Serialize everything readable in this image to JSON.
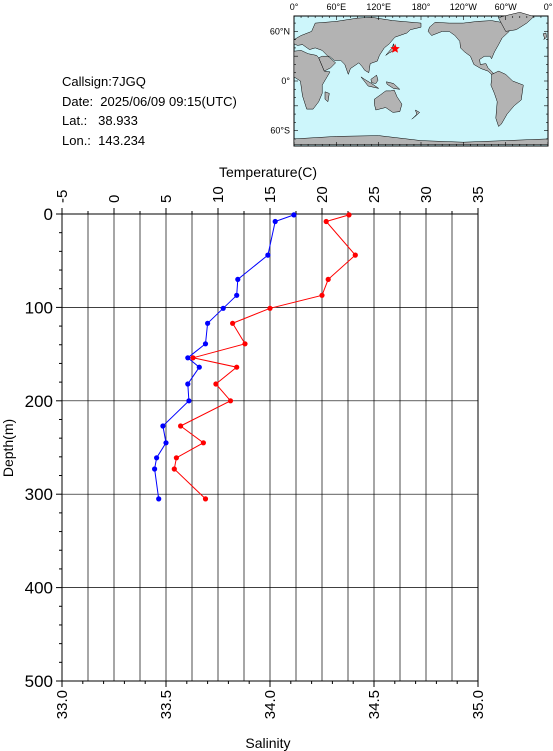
{
  "info": {
    "callsign": "Callsign:7JGQ",
    "date": "Date:  2025/06/09 09:15(UTC)",
    "lat": "Lat.:   38.933",
    "lon": "Lon.:  143.234"
  },
  "map": {
    "top_labels": [
      "0°",
      "60°E",
      "120°E",
      "180°",
      "120°W",
      "60°W",
      "0°"
    ],
    "left_labels": [
      "60°N",
      "0°",
      "60°S"
    ],
    "ocean_color": "#cdf6fb",
    "land_color": "#b3b3b3",
    "marker": {
      "lat": 38.933,
      "lon": 143.234,
      "color": "#ff0000"
    }
  },
  "chart_data": {
    "type": "line",
    "ylabel": "Depth(m)",
    "ylim": [
      500,
      0
    ],
    "yticks": [
      0,
      100,
      200,
      300,
      400,
      500
    ],
    "top_axis": {
      "label": "Temperature(C)",
      "lim": [
        -5,
        35
      ],
      "ticks": [
        -5,
        0,
        5,
        10,
        15,
        20,
        25,
        30,
        35
      ]
    },
    "bottom_axis": {
      "label": "Salinity",
      "lim": [
        33.0,
        35.0
      ],
      "ticks": [
        "33.0",
        "33.5",
        "34.0",
        "34.5",
        "35.0"
      ]
    },
    "grid": true,
    "series": [
      {
        "axis": "temperature",
        "color": "#0000ff",
        "depth": [
          1,
          8,
          44,
          70,
          87,
          101,
          117,
          139,
          154,
          164,
          182,
          200,
          227,
          245,
          261,
          273,
          305
        ],
        "values": [
          17.3,
          15.5,
          14.8,
          11.9,
          11.8,
          10.5,
          9.0,
          8.8,
          7.1,
          8.2,
          7.1,
          7.2,
          4.7,
          5.0,
          4.1,
          3.9,
          4.3
        ]
      },
      {
        "axis": "salinity",
        "color": "#ff0000",
        "depth": [
          1,
          8,
          44,
          70,
          87,
          101,
          117,
          139,
          154,
          164,
          182,
          200,
          227,
          245,
          261,
          273,
          305
        ],
        "values": [
          34.38,
          34.27,
          34.41,
          34.28,
          34.25,
          34.0,
          33.82,
          33.88,
          33.63,
          33.84,
          33.74,
          33.81,
          33.57,
          33.68,
          33.55,
          33.54,
          33.69
        ]
      }
    ]
  }
}
